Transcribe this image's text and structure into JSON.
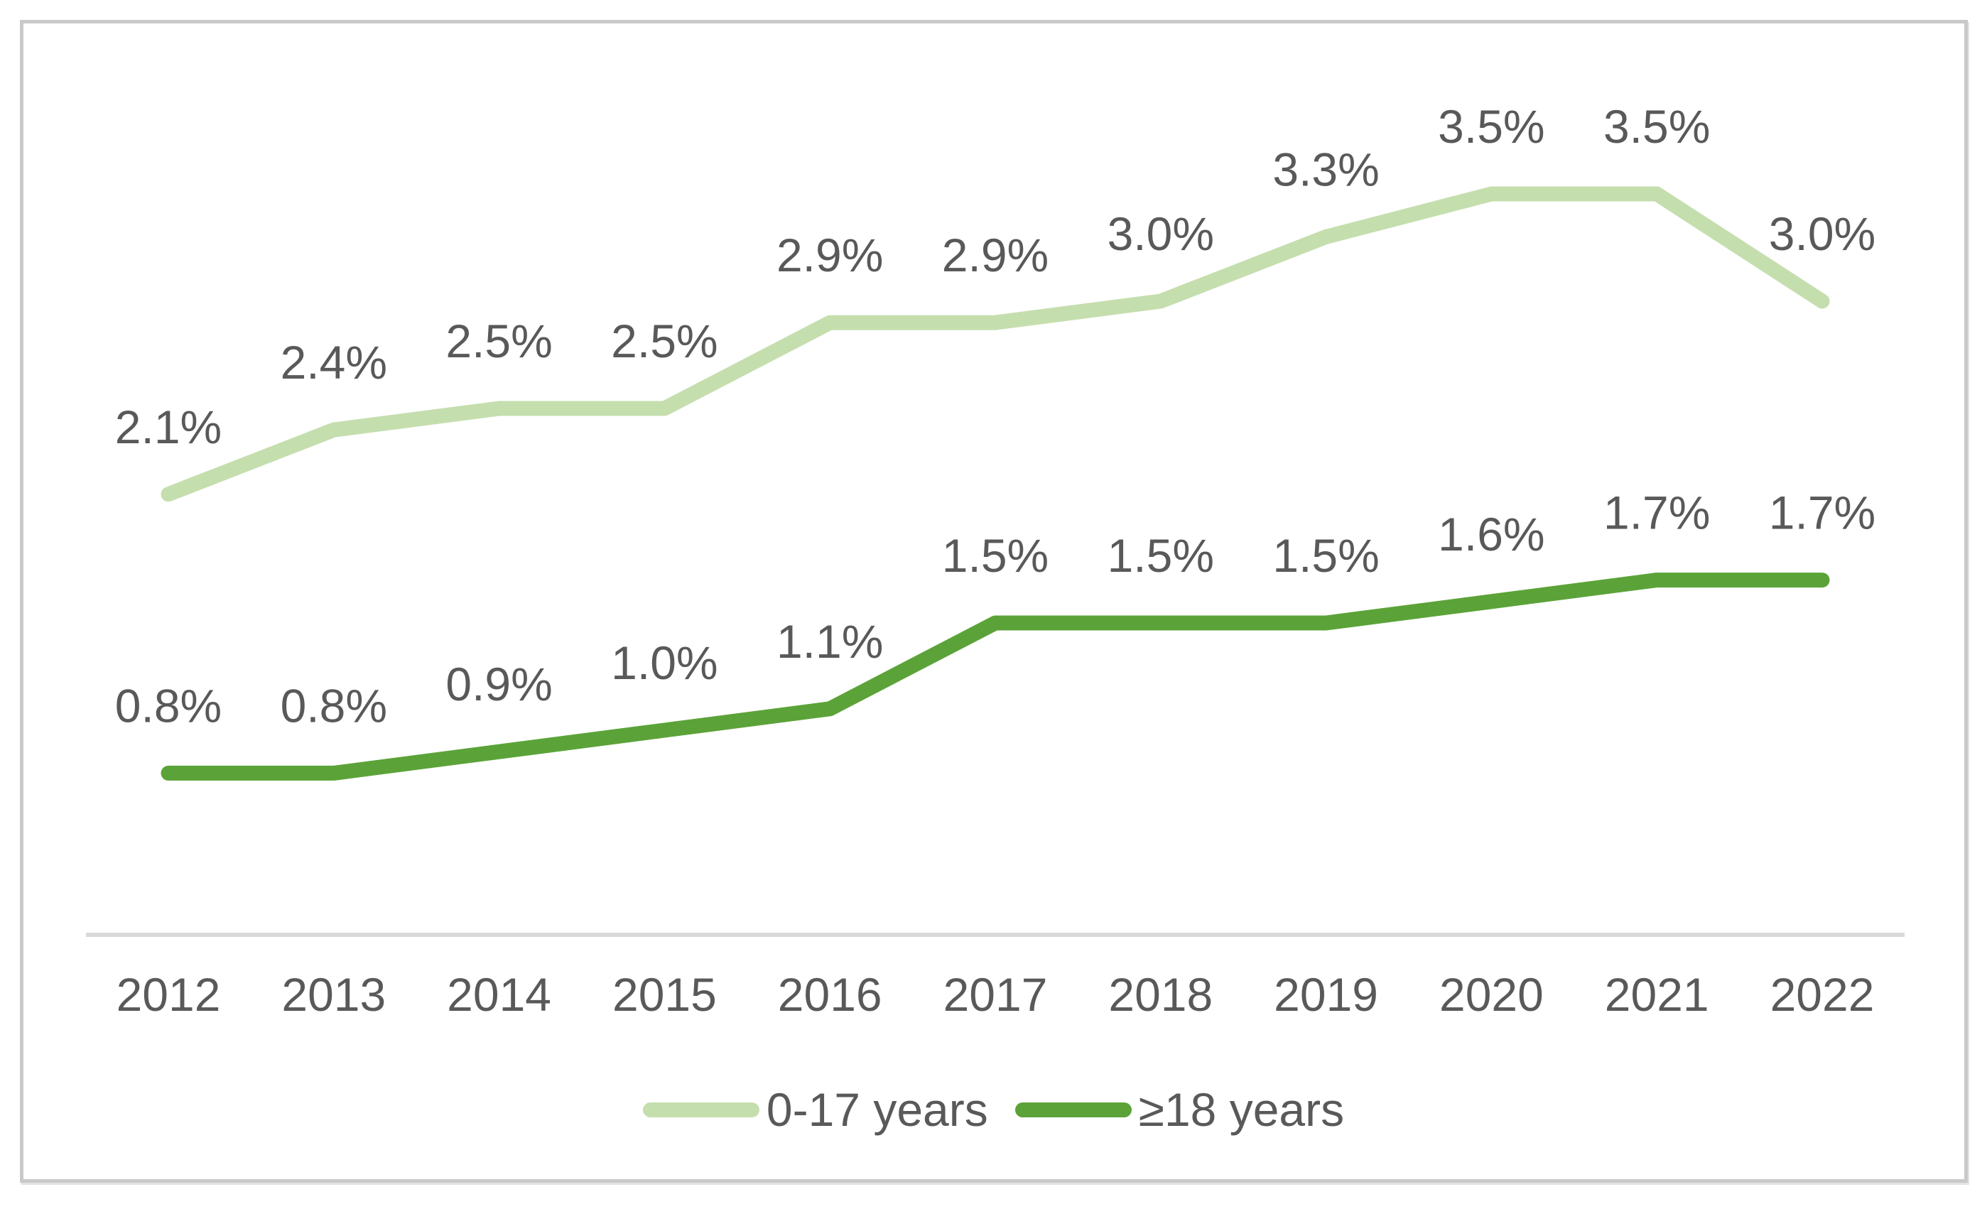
{
  "chart_data": {
    "type": "line",
    "title": "",
    "xlabel": "",
    "ylabel": "",
    "categories": [
      "2012",
      "2013",
      "2014",
      "2015",
      "2016",
      "2017",
      "2018",
      "2019",
      "2020",
      "2021",
      "2022"
    ],
    "series": [
      {
        "name": "0-17 years",
        "color": "#c5deae",
        "values": [
          2.1,
          2.4,
          2.5,
          2.5,
          2.9,
          2.9,
          3.0,
          3.3,
          3.5,
          3.5,
          3.0
        ],
        "labels": [
          "2.1%",
          "2.4%",
          "2.5%",
          "2.5%",
          "2.9%",
          "2.9%",
          "3.0%",
          "3.3%",
          "3.5%",
          "3.5%",
          "3.0%"
        ]
      },
      {
        "name": "≥18 years",
        "color": "#5ba338",
        "values": [
          0.8,
          0.8,
          0.9,
          1.0,
          1.1,
          1.5,
          1.5,
          1.5,
          1.6,
          1.7,
          1.7
        ],
        "labels": [
          "0.8%",
          "0.8%",
          "0.9%",
          "1.0%",
          "1.1%",
          "1.5%",
          "1.5%",
          "1.5%",
          "1.6%",
          "1.7%",
          "1.7%"
        ]
      }
    ],
    "data_labels": true,
    "label_color": "#595959",
    "axis_line_color": "#d9d9d9",
    "grid": false,
    "y_axis_visible": false,
    "ylim": [
      0,
      4
    ],
    "legend_position": "bottom"
  }
}
